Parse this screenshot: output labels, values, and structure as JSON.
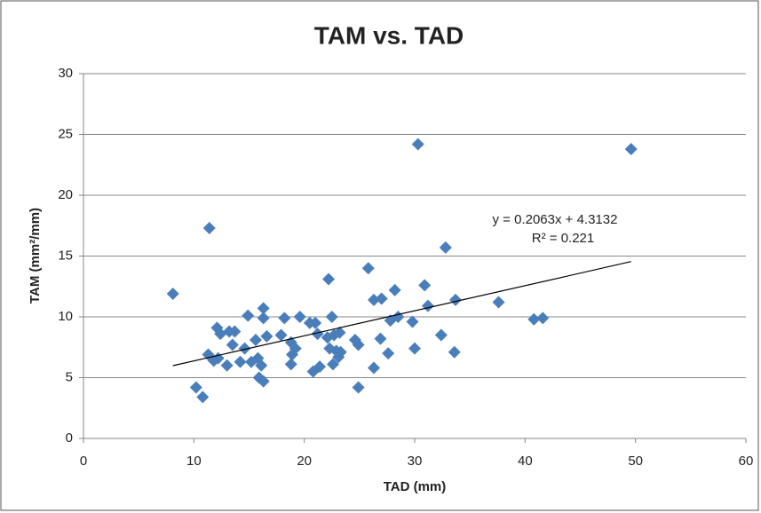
{
  "chart_data": {
    "type": "scatter",
    "title": "TAM vs. TAD",
    "x_label": "TAD (mm)",
    "y_label": "TAM (mm²/mm)",
    "series": [
      {
        "color": "#4a7ebb",
        "x": [
          8.1,
          11.4,
          10.2,
          10.8,
          11.3,
          11.8,
          12.1,
          12.4,
          12.2,
          13.0,
          13.2,
          13.5,
          13.7,
          14.2,
          14.6,
          14.9,
          15.2,
          15.6,
          15.8,
          15.9,
          16.3,
          16.1,
          16.3,
          16.3,
          16.6,
          17.9,
          18.2,
          18.8,
          18.9,
          18.8,
          19.2,
          19.6,
          20.5,
          20.8,
          21.0,
          21.2,
          21.4,
          22.2,
          22.1,
          22.3,
          22.5,
          22.6,
          22.7,
          22.9,
          23.1,
          23.3,
          23.2,
          24.6,
          24.9,
          24.9,
          25.8,
          26.3,
          26.3,
          26.9,
          27.0,
          27.6,
          27.8,
          28.2,
          28.5,
          29.8,
          30.0,
          30.3,
          30.9,
          31.2,
          32.4,
          32.8,
          33.6,
          33.7,
          37.6,
          40.8,
          41.6,
          49.6
        ],
        "values": [
          11.9,
          17.3,
          4.2,
          3.4,
          6.9,
          6.4,
          9.1,
          8.6,
          6.6,
          6.0,
          8.8,
          7.7,
          8.8,
          6.3,
          7.4,
          10.1,
          6.3,
          8.1,
          6.6,
          5.0,
          4.7,
          6.0,
          9.9,
          10.7,
          8.4,
          8.5,
          9.9,
          7.9,
          6.9,
          6.1,
          7.4,
          10.0,
          9.5,
          5.5,
          9.5,
          8.6,
          5.9,
          13.1,
          8.3,
          7.4,
          10.0,
          6.1,
          8.5,
          7.2,
          6.7,
          7.1,
          8.7,
          8.1,
          7.7,
          4.2,
          14.0,
          5.8,
          11.4,
          8.2,
          11.5,
          7.0,
          9.7,
          12.2,
          10.0,
          9.6,
          7.4,
          24.2,
          12.6,
          10.9,
          8.5,
          15.7,
          7.1,
          11.4,
          11.2,
          9.8,
          9.9,
          23.8
        ]
      }
    ],
    "trendline": {
      "label": "y = 0.2063x + 4.3132",
      "r2_label": "R² = 0.221",
      "slope": 0.2063,
      "intercept": 4.3132,
      "x_range": [
        8.1,
        49.6
      ]
    },
    "xlim": [
      0,
      60
    ],
    "xticks": [
      0,
      10,
      20,
      30,
      40,
      50,
      60
    ],
    "ylim": [
      0,
      30
    ],
    "yticks": [
      0,
      5,
      10,
      15,
      20,
      25,
      30
    ],
    "grid": true
  }
}
